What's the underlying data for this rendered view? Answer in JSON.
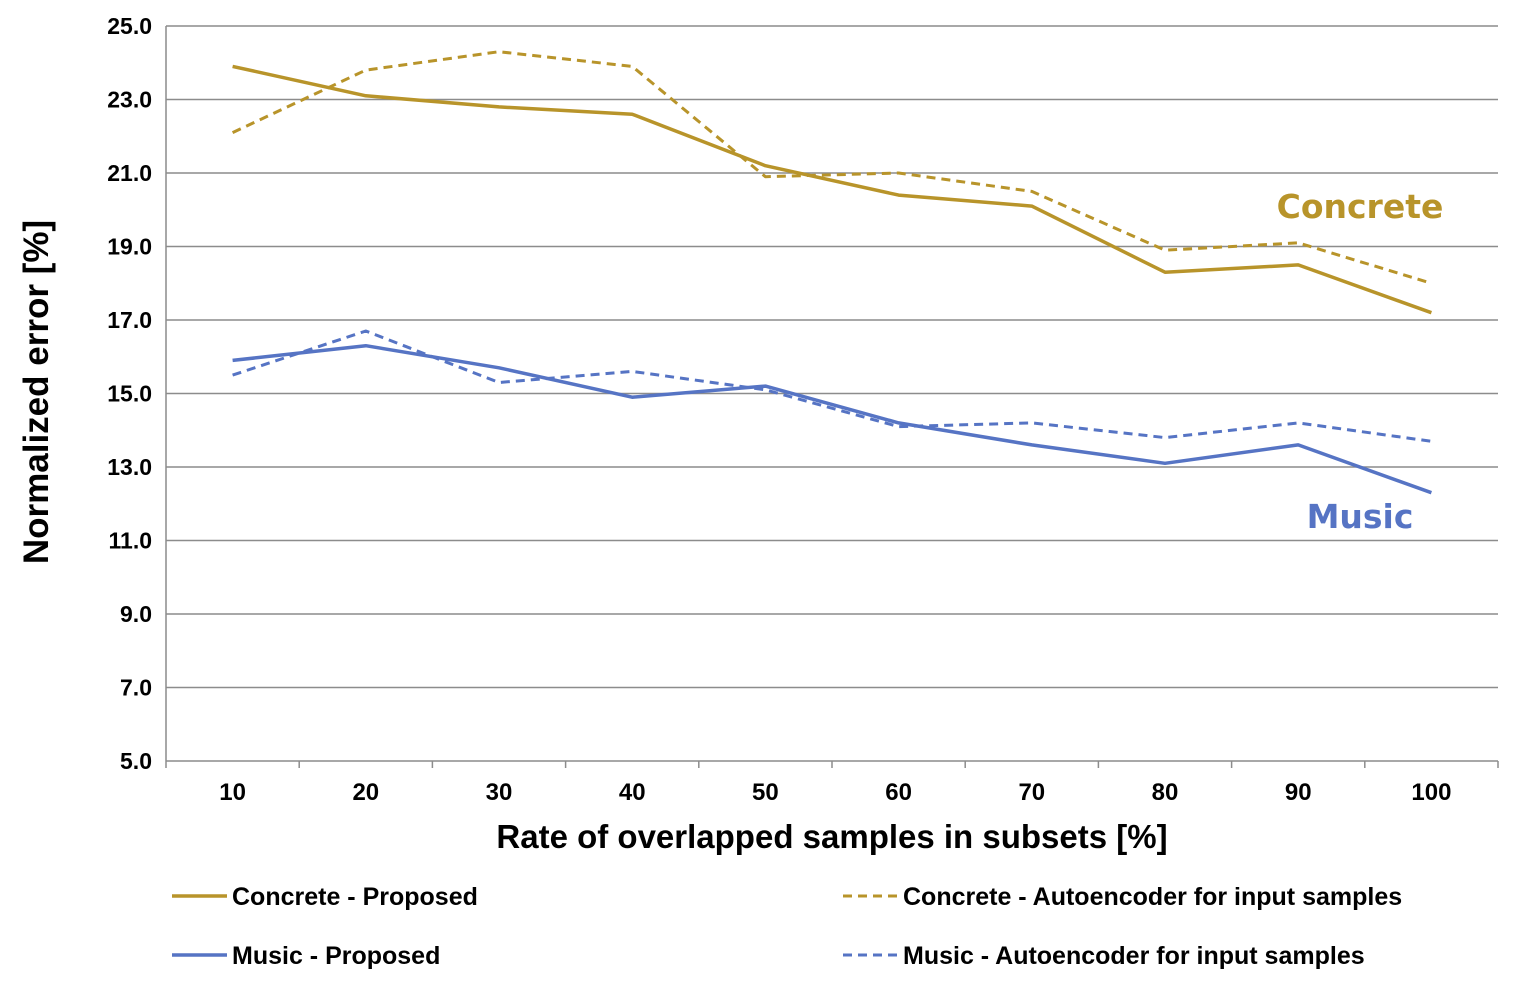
{
  "chart_data": {
    "type": "line",
    "title": "",
    "xlabel": "Rate of overlapped samples in subsets [%]",
    "ylabel": "Normalized error [%]",
    "ylim": [
      5.0,
      25.0
    ],
    "y_ticks": [
      "5.0",
      "7.0",
      "9.0",
      "11.0",
      "13.0",
      "15.0",
      "17.0",
      "19.0",
      "21.0",
      "23.0",
      "25.0"
    ],
    "categories": [
      "10",
      "20",
      "30",
      "40",
      "50",
      "60",
      "70",
      "80",
      "90",
      "100"
    ],
    "grid": true,
    "legend_position": "bottom",
    "series": [
      {
        "name": "Concrete - Proposed",
        "color": "#B8942A",
        "dash": "solid",
        "values": [
          23.9,
          23.1,
          22.8,
          22.6,
          21.2,
          20.4,
          20.1,
          18.3,
          18.5,
          17.2
        ]
      },
      {
        "name": "Concrete - Autoencoder for input samples",
        "color": "#B8942A",
        "dash": "dashed",
        "values": [
          22.1,
          23.8,
          24.3,
          23.9,
          20.9,
          21.0,
          20.5,
          18.9,
          19.1,
          18.0
        ]
      },
      {
        "name": "Music - Proposed",
        "color": "#5674C4",
        "dash": "solid",
        "values": [
          15.9,
          16.3,
          15.7,
          14.9,
          15.2,
          14.2,
          13.6,
          13.1,
          13.6,
          12.3
        ]
      },
      {
        "name": "Music - Autoencoder for input samples",
        "color": "#5674C4",
        "dash": "dashed",
        "values": [
          15.5,
          16.7,
          15.3,
          15.6,
          15.1,
          14.1,
          14.2,
          13.8,
          14.2,
          13.7
        ]
      }
    ],
    "annotations": [
      {
        "text": "Concrete",
        "color": "#B8942A"
      },
      {
        "text": "Music",
        "color": "#5674C4"
      }
    ]
  }
}
